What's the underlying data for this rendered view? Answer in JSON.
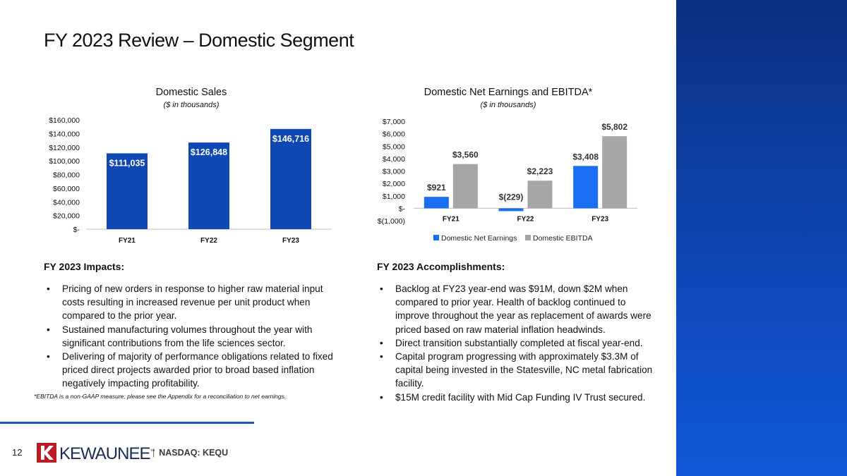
{
  "slide": {
    "title": "FY 2023 Review – Domestic Segment",
    "page_number": "12",
    "footnote": "*EBITDA is a non-GAAP measure; please see the Appendix for a reconciliation to net earnings.",
    "logo_text": "KEWAUNEE",
    "logo_mark": "™",
    "ticker_separator": "|",
    "ticker": "NASDAQ: KEQU"
  },
  "colors": {
    "sales_bar": "#0f47b5",
    "net_earnings": "#1a6ef2",
    "ebitda": "#a6a6a6",
    "right_band": "#0f47b5"
  },
  "impacts": {
    "heading": "FY 2023 Impacts:",
    "bullets": [
      "Pricing of new orders in response to higher raw material input costs resulting in increased revenue per unit product when compared to the prior year.",
      "Sustained manufacturing volumes throughout the year with significant contributions from the life sciences sector.",
      "Delivering of majority of performance obligations related to fixed priced direct projects awarded prior to broad based inflation negatively impacting profitability."
    ]
  },
  "accomplishments": {
    "heading": "FY 2023 Accomplishments:",
    "bullets": [
      "Backlog at FY23 year-end was $91M, down $2M when compared to prior year.  Health of backlog continued to improve throughout the year as replacement of awards were priced based on raw material inflation headwinds.",
      "Direct transition substantially completed at fiscal year-end.",
      "Capital program progressing with approximately $3.3M of capital being invested in the Statesville, NC metal fabrication facility.",
      "$15M credit facility with Mid Cap Funding IV Trust secured."
    ]
  },
  "chart_data": [
    {
      "type": "bar",
      "title": "Domestic Sales",
      "subtitle": "($ in thousands)",
      "categories": [
        "FY21",
        "FY22",
        "FY23"
      ],
      "values": [
        111035,
        126848,
        146716
      ],
      "value_labels": [
        "$111,035",
        "$126,848",
        "$146,716"
      ],
      "ylim": [
        0,
        160000
      ],
      "ytick_values": [
        0,
        20000,
        40000,
        60000,
        80000,
        100000,
        120000,
        140000,
        160000
      ],
      "ytick_labels": [
        "$-",
        "$20,000",
        "$40,000",
        "$60,000",
        "$80,000",
        "$100,000",
        "$120,000",
        "$140,000",
        "$160,000"
      ],
      "grid": false,
      "legend": "none"
    },
    {
      "type": "bar",
      "title": "Domestic Net Earnings and EBITDA*",
      "subtitle": "($ in thousands)",
      "categories": [
        "FY21",
        "FY22",
        "FY23"
      ],
      "series": [
        {
          "name": "Domestic Net Earnings",
          "values": [
            921,
            -229,
            3408
          ],
          "labels": [
            "$921",
            "$(229)",
            "$3,408"
          ]
        },
        {
          "name": "Domestic EBITDA",
          "values": [
            3560,
            2223,
            5802
          ],
          "labels": [
            "$3,560",
            "$2,223",
            "$5,802"
          ]
        }
      ],
      "ylim": [
        -1000,
        7000
      ],
      "ytick_values": [
        -1000,
        0,
        1000,
        2000,
        3000,
        4000,
        5000,
        6000,
        7000
      ],
      "ytick_labels": [
        "$(1,000)",
        "$-",
        "$1,000",
        "$2,000",
        "$3,000",
        "$4,000",
        "$5,000",
        "$6,000",
        "$7,000"
      ],
      "grid": false,
      "legend": "bottom"
    }
  ]
}
